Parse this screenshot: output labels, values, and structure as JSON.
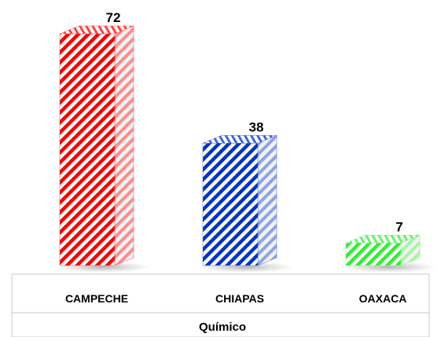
{
  "chart_data": {
    "type": "bar",
    "style": "3d-cylinder-like prism bars with diagonal stripe pattern",
    "categories": [
      "CAMPECHE",
      "CHIAPAS",
      "OAXACA"
    ],
    "values": [
      72,
      38,
      7
    ],
    "value_labels": [
      "72",
      "38",
      "7"
    ],
    "colors": [
      "#ff0000",
      "#0033cc",
      "#33ee33"
    ],
    "xlabel": "Químico",
    "ylim": [
      0,
      72
    ],
    "grid": false,
    "legend": "none"
  }
}
